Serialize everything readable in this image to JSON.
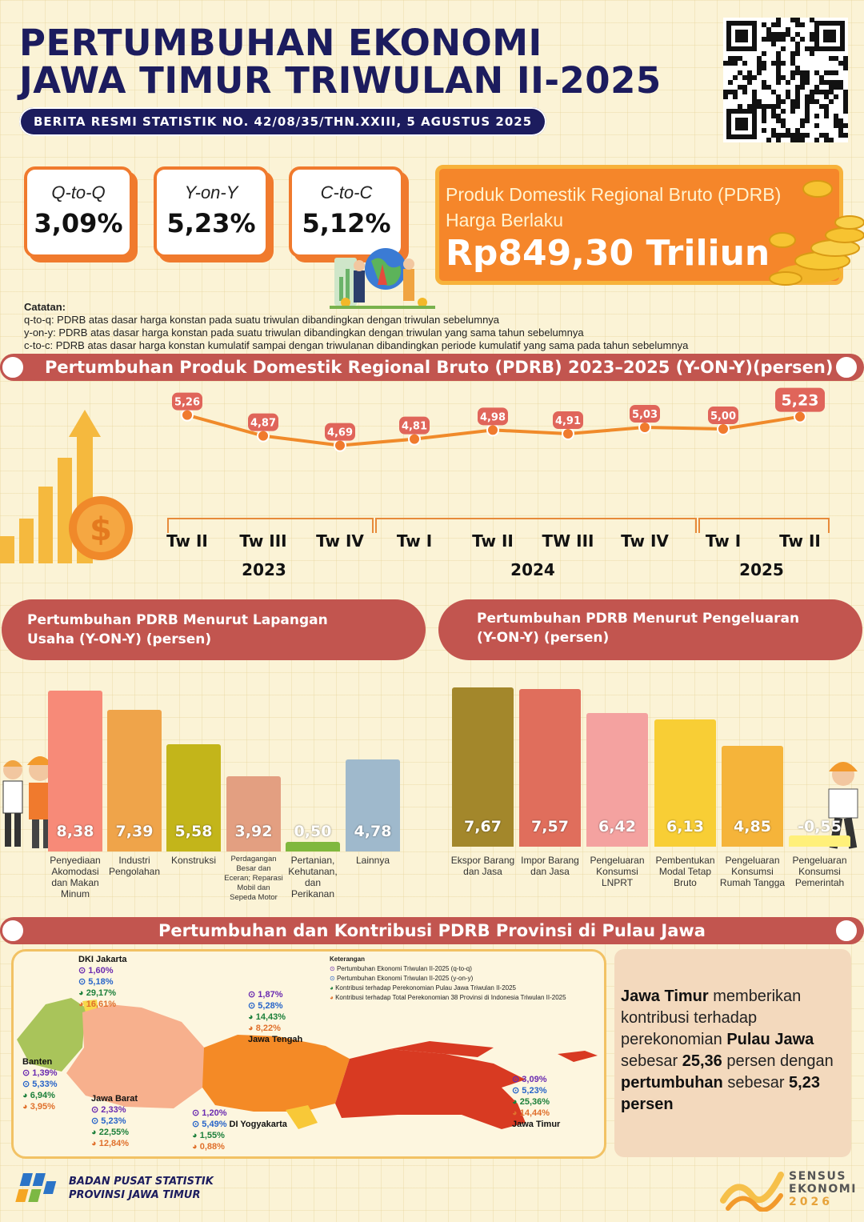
{
  "header": {
    "title_line1": "PERTUMBUHAN EKONOMI",
    "title_line2": "JAWA TIMUR TRIWULAN II-2025",
    "subtitle": "BERITA RESMI STATISTIK NO. 42/08/35/THN.XXIII, 5 AGUSTUS 2025"
  },
  "cards": [
    {
      "label": "Q-to-Q",
      "value": "3,09%"
    },
    {
      "label": "Y-on-Y",
      "value": "5,23%"
    },
    {
      "label": "C-to-C",
      "value": "5,12%"
    }
  ],
  "pdrb": {
    "label": "Produk Domestik Regional Bruto (PDRB) Harga Berlaku",
    "value": "Rp849,30 Triliun"
  },
  "notes": {
    "title": "Catatan:",
    "lines": [
      "q-to-q: PDRB atas dasar harga konstan pada suatu triwulan dibandingkan dengan triwulan sebelumnya",
      "y-on-y: PDRB atas dasar harga konstan pada suatu triwulan dibandingkan dengan triwulan yang sama tahun sebelumnya",
      "c-to-c: PDRB atas dasar harga konstan kumulatif sampai dengan triwulanan dibandingkan periode kumulatif yang sama pada tahun sebelumnya"
    ]
  },
  "banners": {
    "growth": "Pertumbuhan Produk Domestik Regional Bruto (PDRB) 2023–2025  (Y-ON-Y)(persen)",
    "lapangan": "Pertumbuhan PDRB Menurut Lapangan Usaha (Y-ON-Y) (persen)",
    "pengeluaran": "Pertumbuhan PDRB Menurut Pengeluaran (Y-ON-Y) (persen)",
    "jawa": "Pertumbuhan dan Kontribusi PDRB Provinsi di Pulau Jawa"
  },
  "chart_data": [
    {
      "type": "line",
      "title": "Pertumbuhan Produk Domestik Regional Bruto (PDRB) 2023–2025 (Y-ON-Y)(persen)",
      "categories": [
        "Tw II",
        "Tw III",
        "Tw IV",
        "Tw I",
        "Tw II",
        "TW III",
        "Tw IV",
        "Tw I",
        "Tw II"
      ],
      "years": [
        "2023",
        "2024",
        "2025"
      ],
      "values": [
        5.26,
        4.87,
        4.69,
        4.81,
        4.98,
        4.91,
        5.03,
        5.0,
        5.23
      ],
      "labels": [
        "5,26",
        "4,87",
        "4,69",
        "4,81",
        "4,98",
        "4,91",
        "5,03",
        "5,00",
        "5,23"
      ],
      "color": "#f08a2a"
    },
    {
      "type": "bar",
      "title": "Pertumbuhan PDRB Menurut Lapangan Usaha (Y-ON-Y) (persen)",
      "categories": [
        "Penyediaan Akomodasi dan Makan Minum",
        "Industri Pengolahan",
        "Konstruksi",
        "Perdagangan Besar dan Eceran; Reparasi Mobil dan Sepeda Motor",
        "Pertanian, Kehutanan, dan Perikanan",
        "Lainnya"
      ],
      "values": [
        8.38,
        7.39,
        5.58,
        3.92,
        0.5,
        4.78
      ],
      "labels": [
        "8,38",
        "7,39",
        "5,58",
        "3,92",
        "0,50",
        "4,78"
      ],
      "colors": [
        "#f78a78",
        "#efa44a",
        "#c3b51a",
        "#e39f81",
        "#80b83e",
        "#9fb9cc"
      ]
    },
    {
      "type": "bar",
      "title": "Pertumbuhan PDRB Menurut Pengeluaran (Y-ON-Y) (persen)",
      "categories": [
        "Ekspor Barang dan Jasa",
        "Impor Barang dan Jasa",
        "Pengeluaran Konsumsi LNPRT",
        "Pembentukan Modal Tetap Bruto",
        "Pengeluaran Konsumsi Rumah Tangga",
        "Pengeluaran Konsumsi Pemerintah"
      ],
      "values": [
        7.67,
        7.57,
        6.42,
        6.13,
        4.85,
        -0.55
      ],
      "labels": [
        "7,67",
        "7,57",
        "6,42",
        "6,13",
        "4,85",
        "-0,55"
      ],
      "colors": [
        "#a3872b",
        "#e06e5c",
        "#f4a2a0",
        "#f8ce35",
        "#f5b43a",
        "#fff07a"
      ]
    }
  ],
  "map": {
    "legend_title": "Keterangan",
    "legend": [
      "Pertumbuhan Ekonomi Triwulan II-2025 (q-to-q)",
      "Pertumbuhan Ekonomi Triwulan II-2025 (y-on-y)",
      "Kontribusi terhadap Perekonomian Pulau Jawa Triwulan II-2025",
      "Kontribusi terhadap Total Perekonomian 38 Provinsi di Indonesia Triwulan II-2025"
    ],
    "provinces": [
      {
        "name": "DKI Jakarta",
        "qtq": "1,60%",
        "yoy": "5,18%",
        "jawa": "29,17%",
        "indo": "16,61%"
      },
      {
        "name": "Banten",
        "qtq": "1,39%",
        "yoy": "5,33%",
        "jawa": "6,94%",
        "indo": "3,95%"
      },
      {
        "name": "Jawa Barat",
        "qtq": "2,33%",
        "yoy": "5,23%",
        "jawa": "22,55%",
        "indo": "12,84%"
      },
      {
        "name": "Jawa Tengah",
        "qtq": "1,87%",
        "yoy": "5,28%",
        "jawa": "14,43%",
        "indo": "8,22%"
      },
      {
        "name": "DI Yogyakarta",
        "qtq": "1,20%",
        "yoy": "5,49%",
        "jawa": "1,55%",
        "indo": "0,88%"
      },
      {
        "name": "Jawa Timur",
        "qtq": "3,09%",
        "yoy": "5,23%",
        "jawa": "25,36%",
        "indo": "14,44%"
      }
    ]
  },
  "summary": {
    "p1": "Jawa Timur",
    "p2": " memberikan kontribusi terhadap perekonomian ",
    "p3": "Pulau Jawa",
    "p4": " sebesar ",
    "p5": "25,36",
    "p6": " persen dengan ",
    "p7": "pertumbuhan",
    "p8": " sebesar ",
    "p9": "5,23 persen"
  },
  "footer": {
    "org_line1": "BADAN PUSAT STATISTIK",
    "org_line2": "PROVINSI JAWA TIMUR",
    "sensus_line1": "SENSUS",
    "sensus_line2": "EKONOMI",
    "sensus_line3": "2026"
  },
  "colors": {
    "navy": "#1c1c5e",
    "orange": "#f07a2d",
    "banner": "#c2554f"
  }
}
